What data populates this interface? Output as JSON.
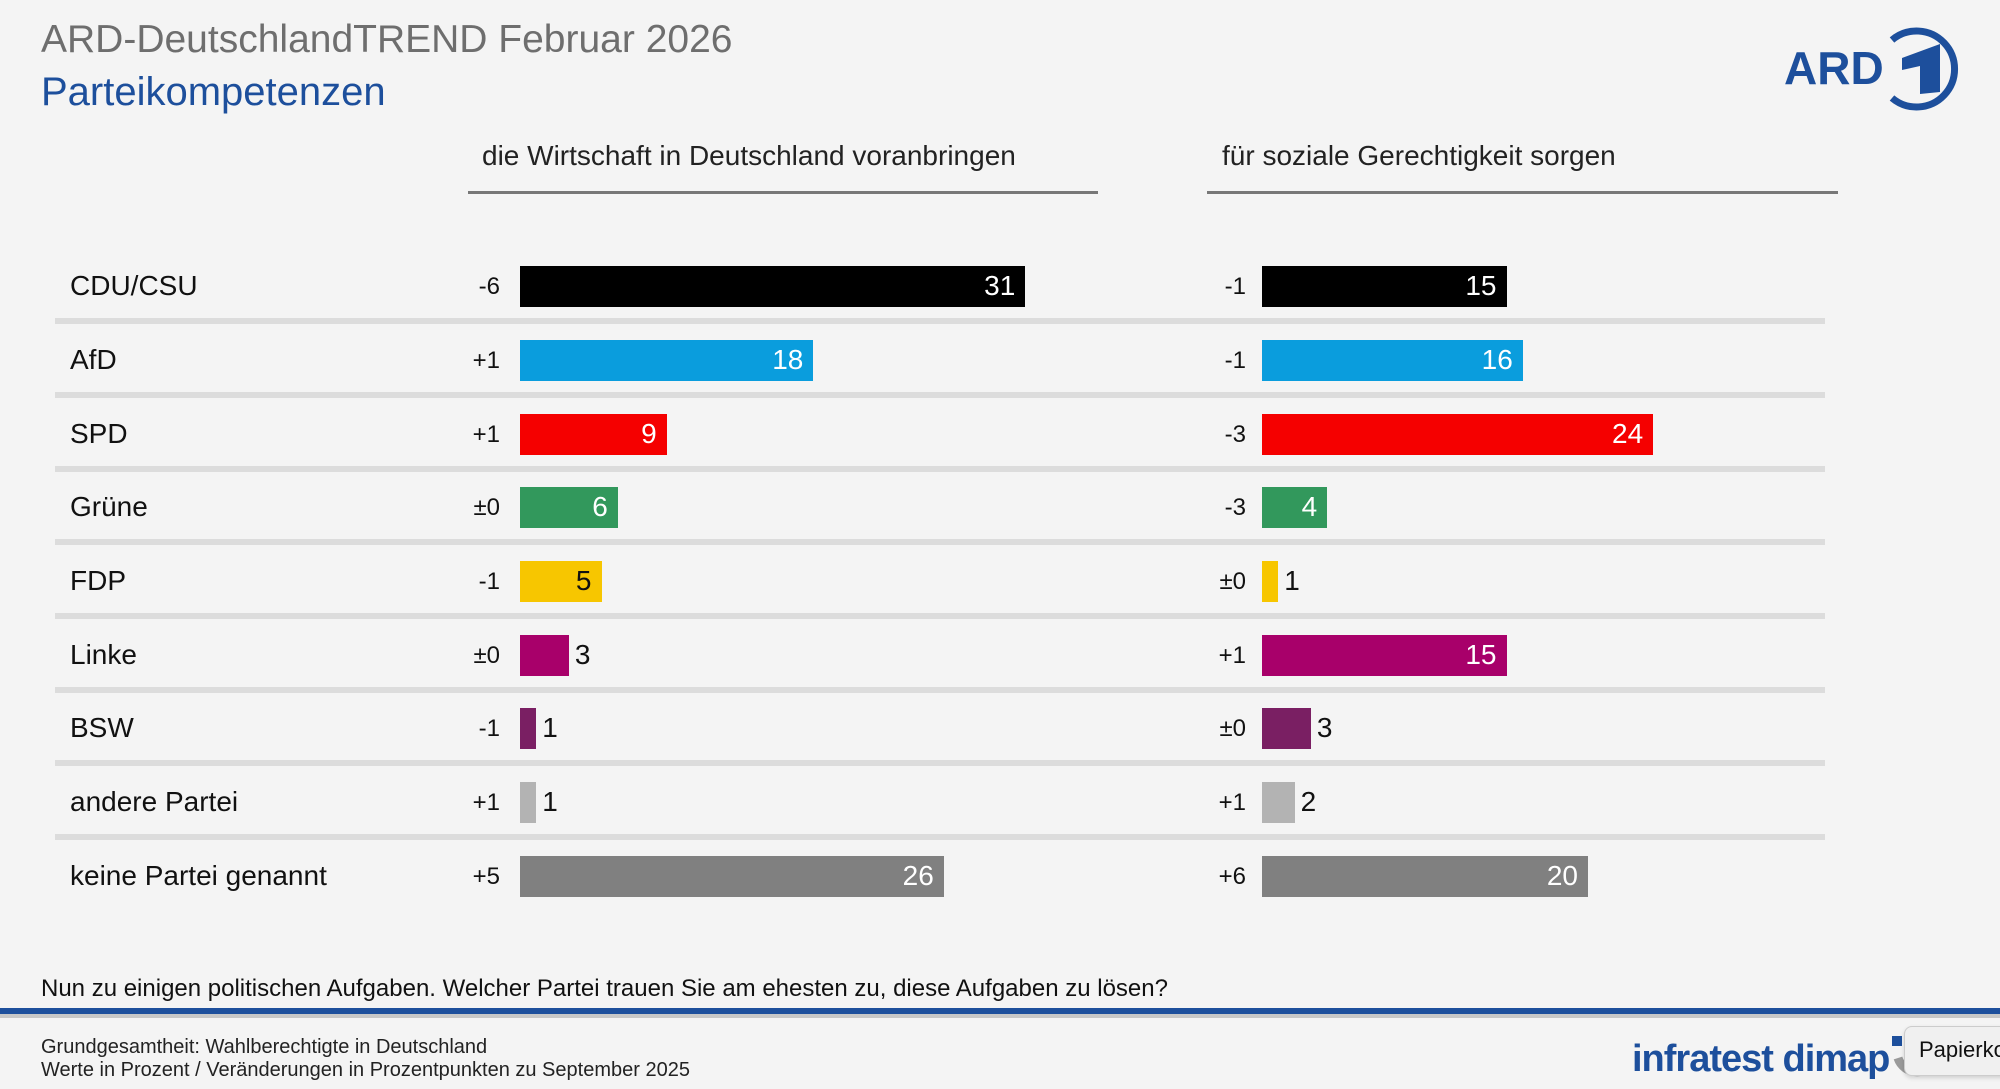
{
  "header": {
    "title": "ARD-DeutschlandTREND Februar 2026",
    "subtitle": "Parteikompetenzen",
    "logo_text": "ARD"
  },
  "chart_data": {
    "type": "bar",
    "orientation": "horizontal",
    "title": "Parteikompetenzen",
    "unit": "Prozent",
    "categories": [
      "CDU/CSU",
      "AfD",
      "SPD",
      "Grüne",
      "FDP",
      "Linke",
      "BSW",
      "andere Partei",
      "keine Partei genannt"
    ],
    "colors": [
      "#000000",
      "#0a9ddd",
      "#f50000",
      "#32985c",
      "#f7c600",
      "#a8006a",
      "#7a1f63",
      "#b3b3b3",
      "#808080"
    ],
    "series": [
      {
        "name": "die Wirtschaft in Deutschland voranbringen",
        "values": [
          31,
          18,
          9,
          6,
          5,
          3,
          1,
          1,
          26
        ],
        "changes": [
          "-6",
          "+1",
          "+1",
          "±0",
          "-1",
          "±0",
          "-1",
          "+1",
          "+5"
        ]
      },
      {
        "name": "für soziale Gerechtigkeit sorgen",
        "values": [
          15,
          16,
          24,
          4,
          1,
          15,
          3,
          2,
          20
        ],
        "changes": [
          "-1",
          "-1",
          "-3",
          "-3",
          "±0",
          "+1",
          "±0",
          "+1",
          "+6"
        ]
      }
    ]
  },
  "footer": {
    "question": "Nun zu einigen politischen Aufgaben. Welcher Partei trauen Sie am ehesten zu, diese Aufgaben zu lösen?",
    "base": "Grundgesamtheit: Wahlberechtigte in Deutschland",
    "note": "Werte in Prozent / Veränderungen in Prozentpunkten zu September 2025",
    "brand": "infratest dimap"
  },
  "tooltip": {
    "label": "Papierkorb"
  }
}
